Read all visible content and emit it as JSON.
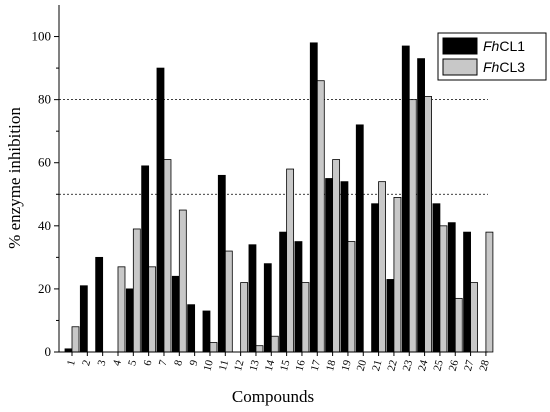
{
  "chart_data": {
    "type": "bar",
    "xlabel": "Compounds",
    "ylabel": "% enzyme inhibition",
    "ylim": [
      0,
      110
    ],
    "yticks": [
      0,
      20,
      40,
      60,
      80,
      100
    ],
    "reference_lines": [
      50,
      80
    ],
    "legend_position": "top-right",
    "categories": [
      "1",
      "2",
      "3",
      "4",
      "5",
      "6",
      "7",
      "8",
      "9",
      "10",
      "11",
      "12",
      "13",
      "14",
      "15",
      "16",
      "17",
      "18",
      "19",
      "20",
      "21",
      "22",
      "23",
      "24",
      "25",
      "26",
      "27",
      "28"
    ],
    "series": [
      {
        "name_prefix": "Fh",
        "name_suffix": "CL1",
        "color": "#000000",
        "values": [
          1,
          21,
          30,
          0,
          20,
          59,
          90,
          24,
          15,
          13,
          56,
          0,
          34,
          28,
          38,
          35,
          98,
          55,
          54,
          72,
          47,
          23,
          97,
          93,
          47,
          41,
          38,
          0
        ]
      },
      {
        "name_prefix": "Fh",
        "name_suffix": "CL3",
        "color": "#c8c8c8",
        "values": [
          8,
          0,
          0,
          27,
          39,
          27,
          61,
          45,
          0,
          3,
          32,
          22,
          2,
          5,
          58,
          22,
          86,
          61,
          35,
          0,
          54,
          49,
          80,
          81,
          40,
          17,
          22,
          38
        ]
      }
    ]
  }
}
